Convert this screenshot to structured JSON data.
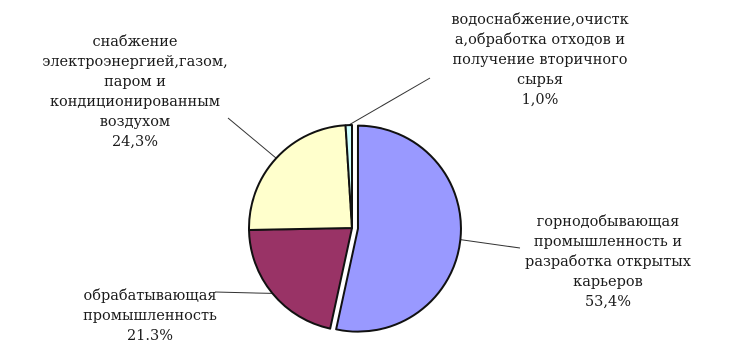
{
  "chart_data": {
    "type": "pie",
    "slices": [
      {
        "label_lines": [
          "горнодобывающая",
          "промышленность и",
          "разработка открытых",
          "карьеров"
        ],
        "value": 53.4,
        "value_label": "53,4%",
        "color": "#9999ff"
      },
      {
        "label_lines": [
          "обрабатывающая",
          "промышленность"
        ],
        "value": 21.3,
        "value_label": "21.3%",
        "color": "#993366"
      },
      {
        "label_lines": [
          "снабжение",
          "электроэнергией,газом,",
          "паром и",
          "кондиционированным",
          "воздухом"
        ],
        "value": 24.3,
        "value_label": "24,3%",
        "color": "#ffffcc"
      },
      {
        "label_lines": [
          "водоснабжение,очистк",
          "а,обработка отходов и",
          "получение вторичного",
          "сырья"
        ],
        "value": 1.0,
        "value_label": "1,0%",
        "color": "#ccffff"
      }
    ],
    "start_angle_deg": 0,
    "direction": "clockwise",
    "explode_first_slice": true
  }
}
